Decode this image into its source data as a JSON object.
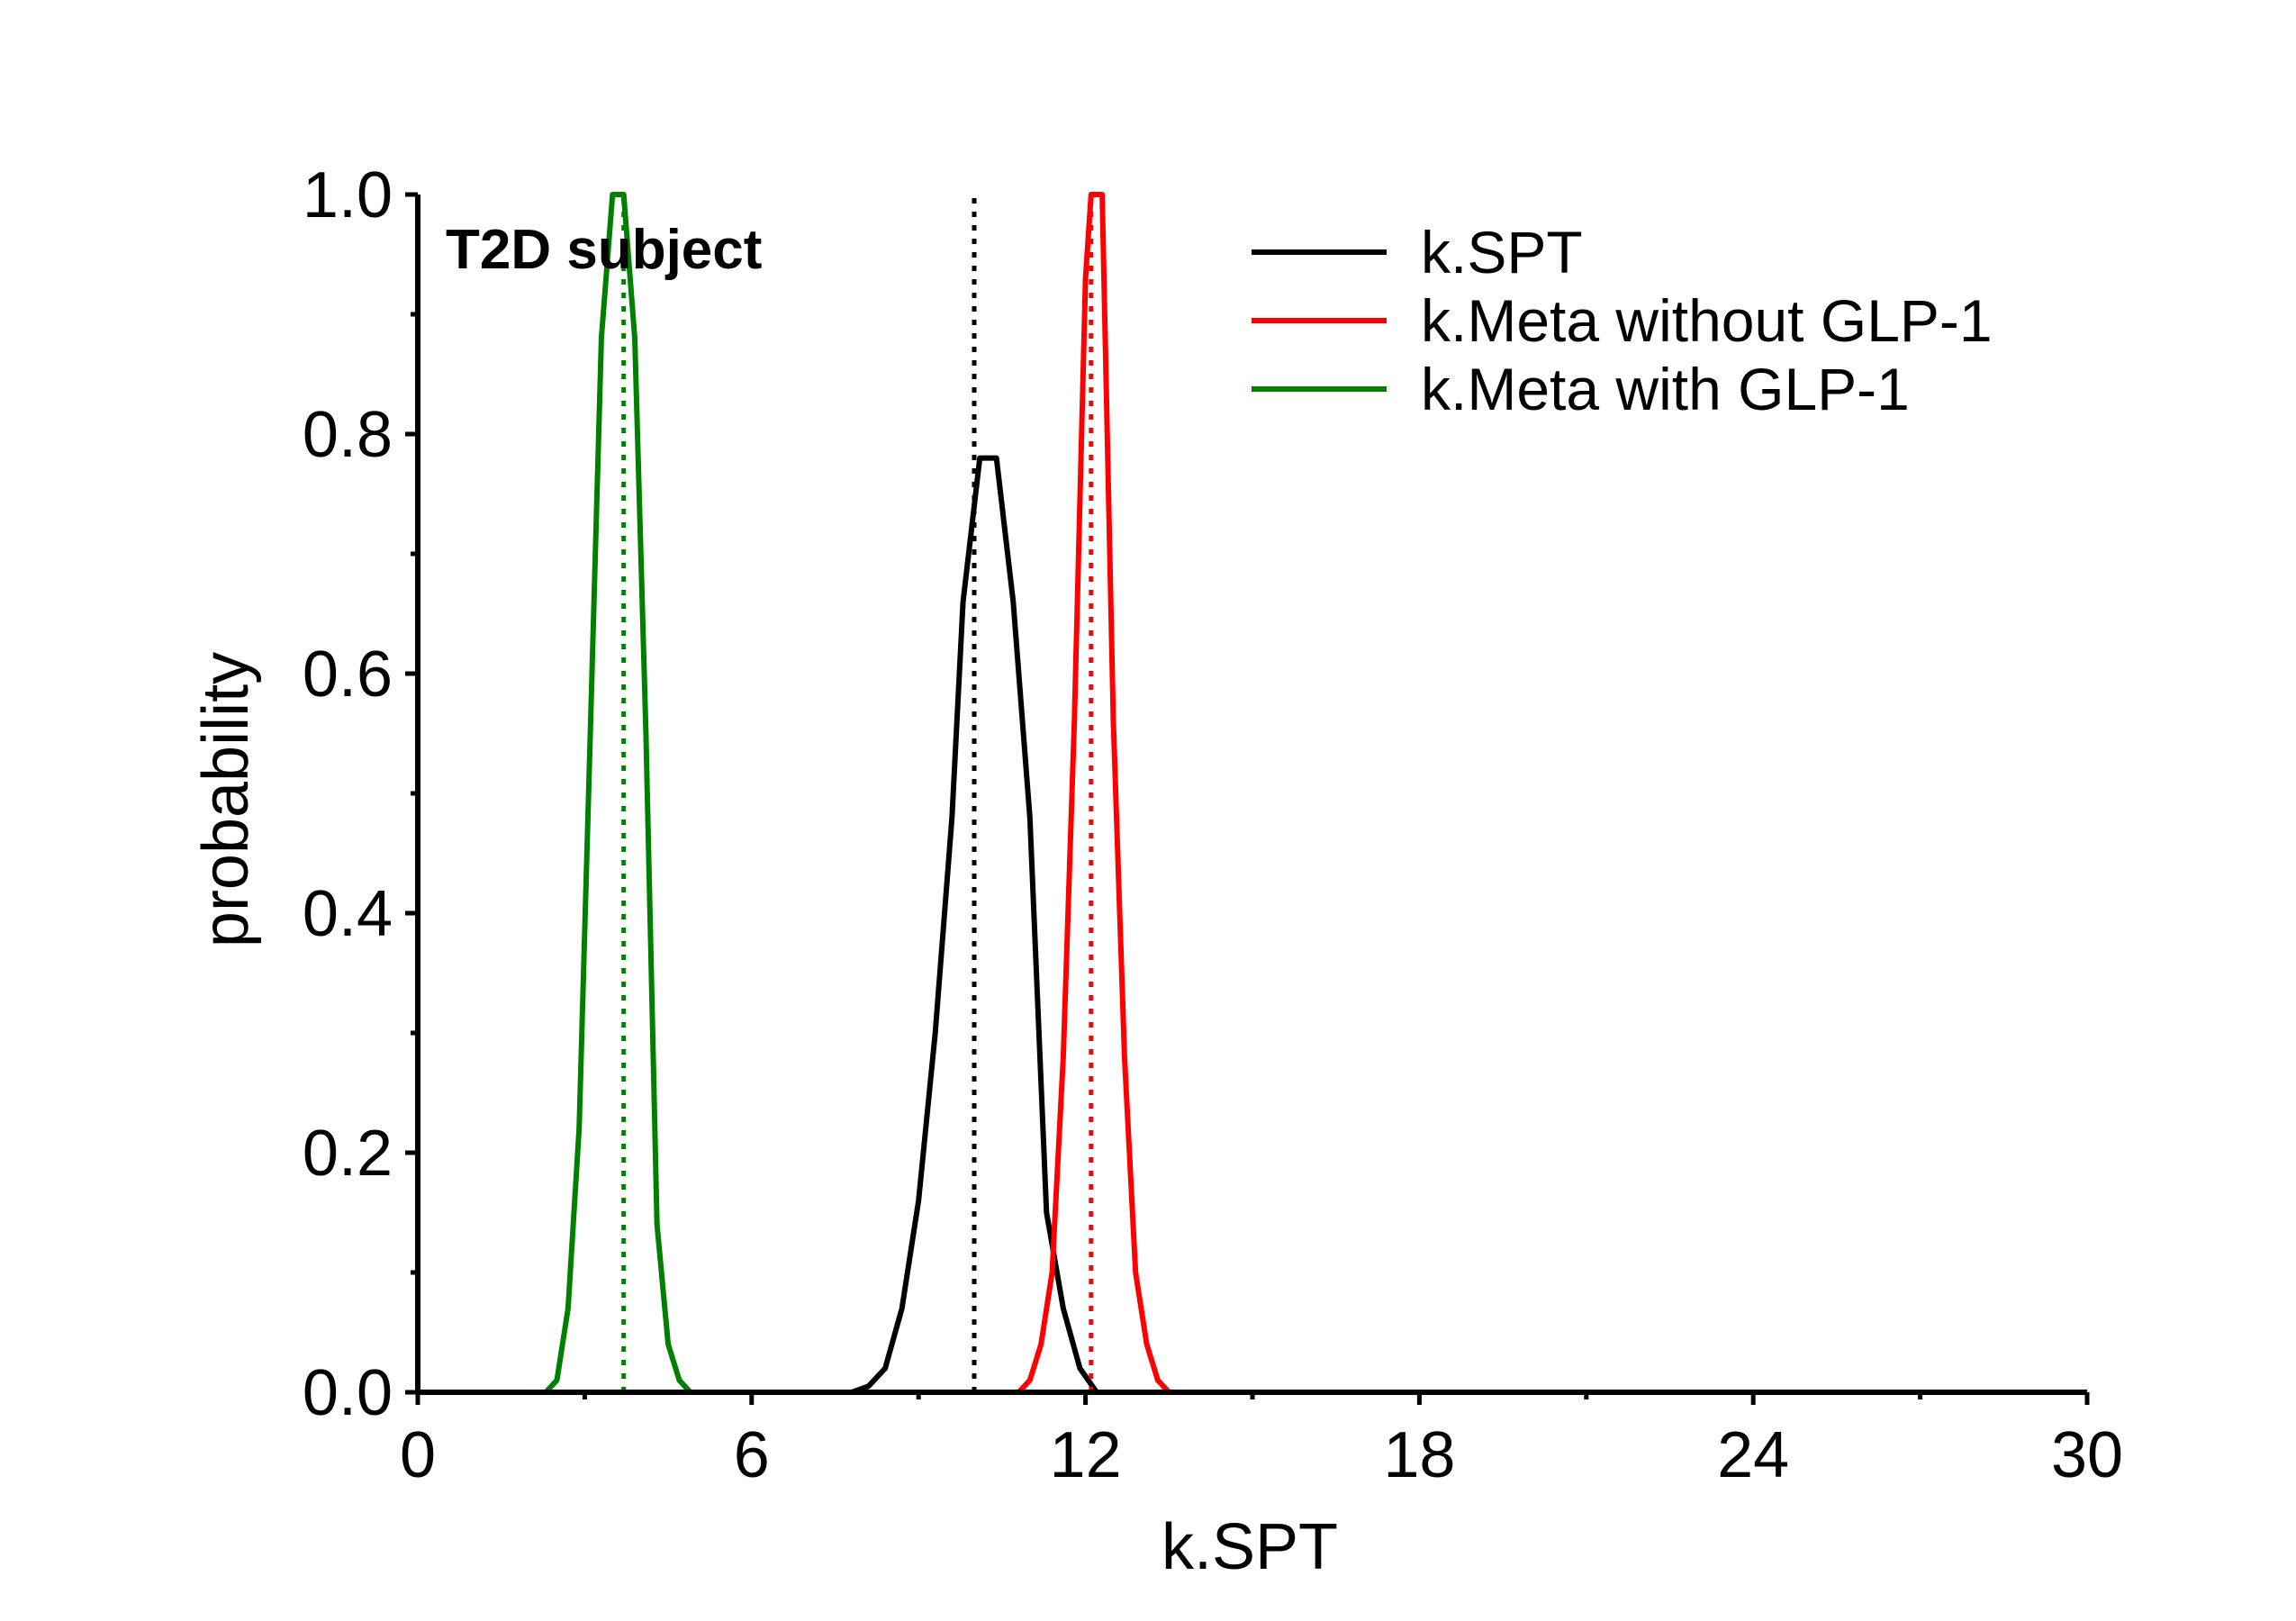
{
  "chart_data": {
    "type": "line",
    "title": "",
    "annotation": "T2D subject",
    "xlabel": "k.SPT",
    "ylabel": "probability",
    "xlim": [
      0,
      30
    ],
    "ylim": [
      0,
      1
    ],
    "x_ticks": [
      "0",
      "6",
      "12",
      "18",
      "24",
      "30"
    ],
    "y_ticks": [
      "0.0",
      "0.2",
      "0.4",
      "0.6",
      "0.8",
      "1.0"
    ],
    "x_tick_values": [
      0,
      6,
      12,
      18,
      24,
      30
    ],
    "y_tick_values": [
      0,
      0.2,
      0.4,
      0.6,
      0.8,
      1.0
    ],
    "x_minor_ticks": [
      3,
      9,
      15,
      21,
      27
    ],
    "y_minor_ticks": [
      0.1,
      0.3,
      0.5,
      0.7,
      0.9
    ],
    "legend_position": "top-right",
    "grid": false,
    "series": [
      {
        "name": "k.SPT",
        "color": "#000000",
        "mean": 10.0,
        "x": [
          7.8,
          8.1,
          8.4,
          8.7,
          9.0,
          9.3,
          9.6,
          9.8,
          10.1,
          10.4,
          10.7,
          11.0,
          11.3,
          11.6,
          11.9,
          12.2
        ],
        "y": [
          0,
          0.005,
          0.02,
          0.07,
          0.16,
          0.3,
          0.48,
          0.66,
          0.78,
          0.78,
          0.66,
          0.48,
          0.15,
          0.07,
          0.02,
          0
        ]
      },
      {
        "name": "k.Meta without GLP-1",
        "color": "#ff0000",
        "mean": 12.1,
        "x": [
          10.8,
          11.0,
          11.2,
          11.4,
          11.6,
          11.8,
          12.0,
          12.1,
          12.3,
          12.5,
          12.7,
          12.9,
          13.1,
          13.3,
          13.5
        ],
        "y": [
          0,
          0.01,
          0.04,
          0.1,
          0.28,
          0.56,
          0.93,
          1.0,
          1.0,
          0.56,
          0.28,
          0.1,
          0.04,
          0.01,
          0
        ]
      },
      {
        "name": "k.Meta with GLP-1",
        "color": "#008000",
        "mean": 3.7,
        "x": [
          2.3,
          2.5,
          2.7,
          2.9,
          3.1,
          3.3,
          3.5,
          3.7,
          3.9,
          4.1,
          4.3,
          4.5,
          4.7,
          4.9,
          5.1
        ],
        "y": [
          0,
          0.01,
          0.07,
          0.22,
          0.55,
          0.88,
          1.0,
          1.0,
          0.88,
          0.55,
          0.14,
          0.04,
          0.01,
          0,
          0
        ]
      }
    ]
  }
}
